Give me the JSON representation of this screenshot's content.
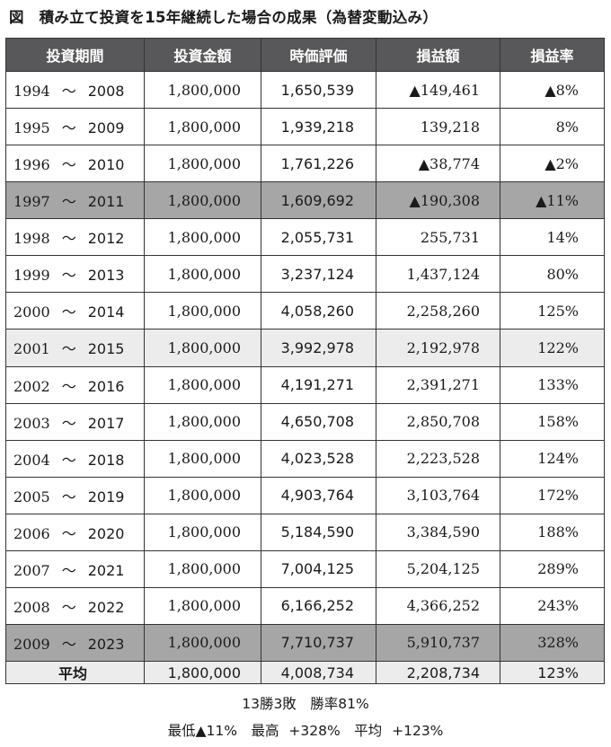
{
  "title": "図　積み立て投資を15年継続した場合の成果（為替変動込み）",
  "headers": [
    "投資期間",
    "投資金額",
    "時価評価",
    "損益額",
    "損益率"
  ],
  "tilde": "〜",
  "rows": [
    {
      "start": "1994",
      "end": "2008",
      "investment": "1,800,000",
      "market_value": "1,650,539",
      "profit": "▲149,461",
      "rate": "▲8%",
      "shade": ""
    },
    {
      "start": "1995",
      "end": "2009",
      "investment": "1,800,000",
      "market_value": "1,939,218",
      "profit": "139,218",
      "rate": "8%",
      "shade": ""
    },
    {
      "start": "1996",
      "end": "2010",
      "investment": "1,800,000",
      "market_value": "1,761,226",
      "profit": "▲38,774",
      "rate": "▲2%",
      "shade": ""
    },
    {
      "start": "1997",
      "end": "2011",
      "investment": "1,800,000",
      "market_value": "1,609,692",
      "profit": "▲190,308",
      "rate": "▲11%",
      "shade": "dark"
    },
    {
      "start": "1998",
      "end": "2012",
      "investment": "1,800,000",
      "market_value": "2,055,731",
      "profit": "255,731",
      "rate": "14%",
      "shade": ""
    },
    {
      "start": "1999",
      "end": "2013",
      "investment": "1,800,000",
      "market_value": "3,237,124",
      "profit": "1,437,124",
      "rate": "80%",
      "shade": ""
    },
    {
      "start": "2000",
      "end": "2014",
      "investment": "1,800,000",
      "market_value": "4,058,260",
      "profit": "2,258,260",
      "rate": "125%",
      "shade": ""
    },
    {
      "start": "2001",
      "end": "2015",
      "investment": "1,800,000",
      "market_value": "3,992,978",
      "profit": "2,192,978",
      "rate": "122%",
      "shade": "light"
    },
    {
      "start": "2002",
      "end": "2016",
      "investment": "1,800,000",
      "market_value": "4,191,271",
      "profit": "2,391,271",
      "rate": "133%",
      "shade": ""
    },
    {
      "start": "2003",
      "end": "2017",
      "investment": "1,800,000",
      "market_value": "4,650,708",
      "profit": "2,850,708",
      "rate": "158%",
      "shade": ""
    },
    {
      "start": "2004",
      "end": "2018",
      "investment": "1,800,000",
      "market_value": "4,023,528",
      "profit": "2,223,528",
      "rate": "124%",
      "shade": ""
    },
    {
      "start": "2005",
      "end": "2019",
      "investment": "1,800,000",
      "market_value": "4,903,764",
      "profit": "3,103,764",
      "rate": "172%",
      "shade": ""
    },
    {
      "start": "2006",
      "end": "2020",
      "investment": "1,800,000",
      "market_value": "5,184,590",
      "profit": "3,384,590",
      "rate": "188%",
      "shade": ""
    },
    {
      "start": "2007",
      "end": "2021",
      "investment": "1,800,000",
      "market_value": "7,004,125",
      "profit": "5,204,125",
      "rate": "289%",
      "shade": ""
    },
    {
      "start": "2008",
      "end": "2022",
      "investment": "1,800,000",
      "market_value": "6,166,252",
      "profit": "4,366,252",
      "rate": "243%",
      "shade": ""
    },
    {
      "start": "2009",
      "end": "2023",
      "investment": "1,800,000",
      "market_value": "7,710,737",
      "profit": "5,910,737",
      "rate": "328%",
      "shade": "dark"
    }
  ],
  "average": {
    "label": "平均",
    "investment": "1,800,000",
    "market_value": "4,008,734",
    "profit": "2,208,734",
    "rate": "123%"
  },
  "summary_line1": "13勝3敗　勝率81%",
  "summary_line2": "最低▲11%　最高 +328%　平均 +123%",
  "colors": {
    "header_bg": "#58585a",
    "dark_row": "#a6a6a6",
    "light_row": "#ececec"
  }
}
